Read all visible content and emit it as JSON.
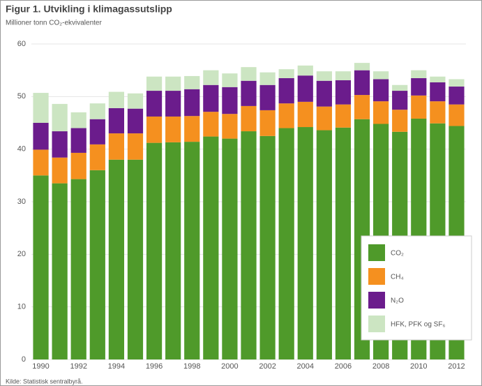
{
  "chart_data": {
    "type": "stacked_bar",
    "title": "Figur 1. Utvikling i klimagassutslipp",
    "subtitle": "Millioner tonn CO₂-ekvivalenter",
    "source": "Kilde: Statistisk sentralbyrå.",
    "categories": [
      "1990",
      null,
      "1992",
      null,
      "1994",
      null,
      "1996",
      null,
      "1998",
      null,
      "2000",
      null,
      "2002",
      null,
      "2004",
      null,
      "2006",
      null,
      "2008",
      null,
      "2010",
      null,
      "2012"
    ],
    "series": [
      {
        "name": "CO₂",
        "color": "#4f9a2a",
        "values": [
          35.0,
          33.5,
          34.3,
          36.0,
          38.0,
          38.0,
          41.2,
          41.3,
          41.4,
          42.4,
          42.0,
          43.4,
          42.5,
          44.0,
          44.2,
          43.6,
          44.1,
          45.7,
          44.8,
          43.3,
          45.8,
          44.9,
          44.4
        ]
      },
      {
        "name": "CH₄",
        "color": "#f5901f",
        "values": [
          4.9,
          4.9,
          5.0,
          4.9,
          5.0,
          5.0,
          5.0,
          4.9,
          4.9,
          4.7,
          4.7,
          4.8,
          4.9,
          4.7,
          4.8,
          4.5,
          4.4,
          4.6,
          4.3,
          4.2,
          4.4,
          4.2,
          4.1
        ]
      },
      {
        "name": "N₂O",
        "color": "#6b1c8c",
        "values": [
          5.1,
          5.0,
          4.7,
          4.8,
          4.8,
          4.7,
          4.9,
          4.9,
          5.1,
          5.1,
          5.1,
          4.8,
          4.8,
          4.8,
          5.0,
          4.9,
          4.6,
          4.7,
          4.2,
          3.6,
          3.3,
          3.6,
          3.4
        ]
      },
      {
        "name": "HFK, PFK og SF₆",
        "color": "#cce5c2",
        "values": [
          5.7,
          5.2,
          3.0,
          3.0,
          3.1,
          2.9,
          2.7,
          2.7,
          2.5,
          2.8,
          2.6,
          2.6,
          2.4,
          1.7,
          1.9,
          1.8,
          1.7,
          1.4,
          1.5,
          1.1,
          1.5,
          1.1,
          1.4
        ]
      }
    ],
    "ylim": [
      0,
      60
    ],
    "yticks": [
      0,
      10,
      20,
      30,
      40,
      50,
      60
    ],
    "grid": true,
    "legend": "lower right"
  }
}
